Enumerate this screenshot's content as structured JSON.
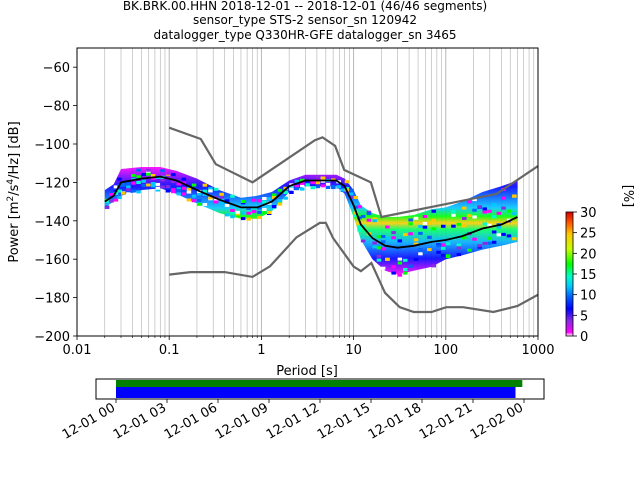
{
  "chart_data": {
    "type": "heatmap",
    "title_lines": [
      "BK.BRK.00.HHN   2018-12-01 -- 2018-12-01  (46/46 segments)",
      "sensor_type STS-2 sensor_sn 120942",
      "datalogger_type Q330HR-GFE datalogger_sn 3465"
    ],
    "xlabel": "Period [s]",
    "ylabel_main": "Power [m",
    "ylabel_unit_tail": "/Hz] [dB]",
    "x_scale": "log",
    "xlim": [
      0.01,
      1000
    ],
    "ylim": [
      -200,
      -50
    ],
    "x_ticks": [
      {
        "value": 0.01,
        "label": "0.01"
      },
      {
        "value": 0.1,
        "label": "0.1"
      },
      {
        "value": 1,
        "label": "1"
      },
      {
        "value": 10,
        "label": "10"
      },
      {
        "value": 100,
        "label": "100"
      },
      {
        "value": 1000,
        "label": "1000"
      }
    ],
    "y_ticks": [
      -60,
      -80,
      -100,
      -120,
      -140,
      -160,
      -180,
      -200
    ],
    "y_tick_labels": [
      "−60",
      "−80",
      "−100",
      "−120",
      "−140",
      "−160",
      "−180",
      "−200"
    ],
    "grid": "vertical minor gridlines on log period axis",
    "colorbar": {
      "label": "[%]",
      "ticks": [
        0,
        5,
        10,
        15,
        20,
        25,
        30
      ],
      "range": [
        0,
        30
      ]
    },
    "nhnm": {
      "periods": [
        0.1,
        0.22,
        0.32,
        0.8,
        3.8,
        4.6,
        6.3,
        7.9,
        15.4,
        20,
        354.8,
        1000
      ],
      "db": [
        -91.5,
        -97.4,
        -110.5,
        -120,
        -98,
        -96.5,
        -101,
        -113.5,
        -120,
        -138,
        -126,
        -111.5
      ]
    },
    "nlnm": {
      "periods": [
        0.1,
        0.17,
        0.4,
        0.8,
        1.24,
        2.4,
        4.3,
        5,
        6,
        10,
        12,
        15.6,
        21.9,
        31.6,
        45,
        70,
        101,
        154,
        328,
        600,
        1000
      ],
      "db": [
        -168,
        -166.7,
        -166.7,
        -169.2,
        -163.7,
        -148.6,
        -141.1,
        -141.1,
        -149,
        -163.8,
        -166.2,
        -162,
        -177.5,
        -185,
        -187.5,
        -187.5,
        -185,
        -185,
        -187.5,
        -184.4,
        -178.5
      ]
    },
    "mode_line": {
      "periods": [
        0.02,
        0.025,
        0.03,
        0.05,
        0.08,
        0.12,
        0.2,
        0.35,
        0.6,
        0.9,
        1.3,
        2,
        3,
        5,
        6.5,
        8,
        10,
        12,
        16,
        22,
        30,
        45,
        70,
        100,
        150,
        250,
        400,
        600
      ],
      "db": [
        -130,
        -127,
        -120,
        -118,
        -117,
        -119,
        -124,
        -129,
        -133,
        -133,
        -130,
        -122,
        -119,
        -119,
        -119,
        -122,
        -132,
        -142,
        -149,
        -153,
        -154,
        -153,
        -151,
        -150,
        -148,
        -144,
        -142,
        -138
      ]
    },
    "density_band": {
      "periods": [
        0.02,
        0.025,
        0.03,
        0.05,
        0.08,
        0.12,
        0.2,
        0.35,
        0.6,
        0.9,
        1.3,
        2,
        3,
        5,
        6.5,
        8,
        10,
        12,
        16,
        22,
        30,
        45,
        70,
        100,
        150,
        250,
        400,
        600
      ],
      "upper_db": [
        -124,
        -121,
        -113,
        -112,
        -112,
        -114,
        -118,
        -124,
        -128,
        -127,
        -125,
        -119,
        -116,
        -116,
        -116,
        -118,
        -124,
        -132,
        -136,
        -138,
        -138,
        -137,
        -134,
        -133,
        -130,
        -125,
        -122,
        -119
      ],
      "lower_db": [
        -133,
        -130,
        -127,
        -124,
        -123,
        -126,
        -131,
        -136,
        -139,
        -139,
        -135,
        -125,
        -122,
        -122,
        -122,
        -126,
        -138,
        -150,
        -160,
        -166,
        -168,
        -166,
        -164,
        -160,
        -158,
        -155,
        -153,
        -151
      ]
    },
    "time_coverage": {
      "tick_labels": [
        "12-01 00",
        "12-01 03",
        "12-01 06",
        "12-01 09",
        "12-01 12",
        "12-01 15",
        "12-01 18",
        "12-01 21",
        "12-02 00"
      ],
      "data_start_hour": 0,
      "data_end_hour": 23.9,
      "psd_end_hour": 23.5
    }
  }
}
